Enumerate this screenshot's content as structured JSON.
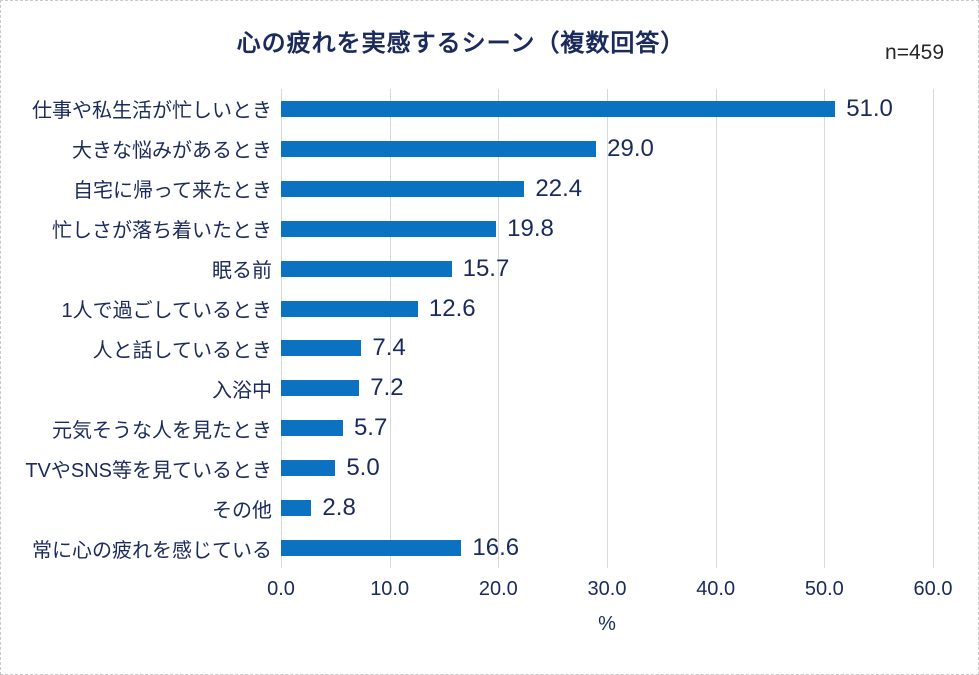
{
  "header": {
    "title": "心の疲れを実感するシーン（複数回答）",
    "sample_size": "n=459"
  },
  "chart_data": {
    "type": "bar",
    "orientation": "horizontal",
    "title": "心の疲れを実感するシーン（複数回答）",
    "categories": [
      "仕事や私生活が忙しいとき",
      "大きな悩みがあるとき",
      "自宅に帰って来たとき",
      "忙しさが落ち着いたとき",
      "眠る前",
      "1人で過ごしているとき",
      "人と話しているとき",
      "入浴中",
      "元気そうな人を見たとき",
      "TVやSNS等を見ているとき",
      "その他",
      "常に心の疲れを感じている"
    ],
    "values": [
      51.0,
      29.0,
      22.4,
      19.8,
      15.7,
      12.6,
      7.4,
      7.2,
      5.7,
      5.0,
      2.8,
      16.6
    ],
    "xlabel": "%",
    "ylabel": "",
    "xlim": [
      0,
      60
    ],
    "x_ticks": [
      "0.0",
      "10.0",
      "20.0",
      "30.0",
      "40.0",
      "50.0",
      "60.0"
    ],
    "grid": "vertical-only",
    "legend": "none",
    "colors": {
      "bar": "#0b72c2",
      "text": "#1b2a5c",
      "gridline": "#d9d9d9",
      "sample_size_text": "#262626",
      "background": "#ffffff"
    }
  }
}
